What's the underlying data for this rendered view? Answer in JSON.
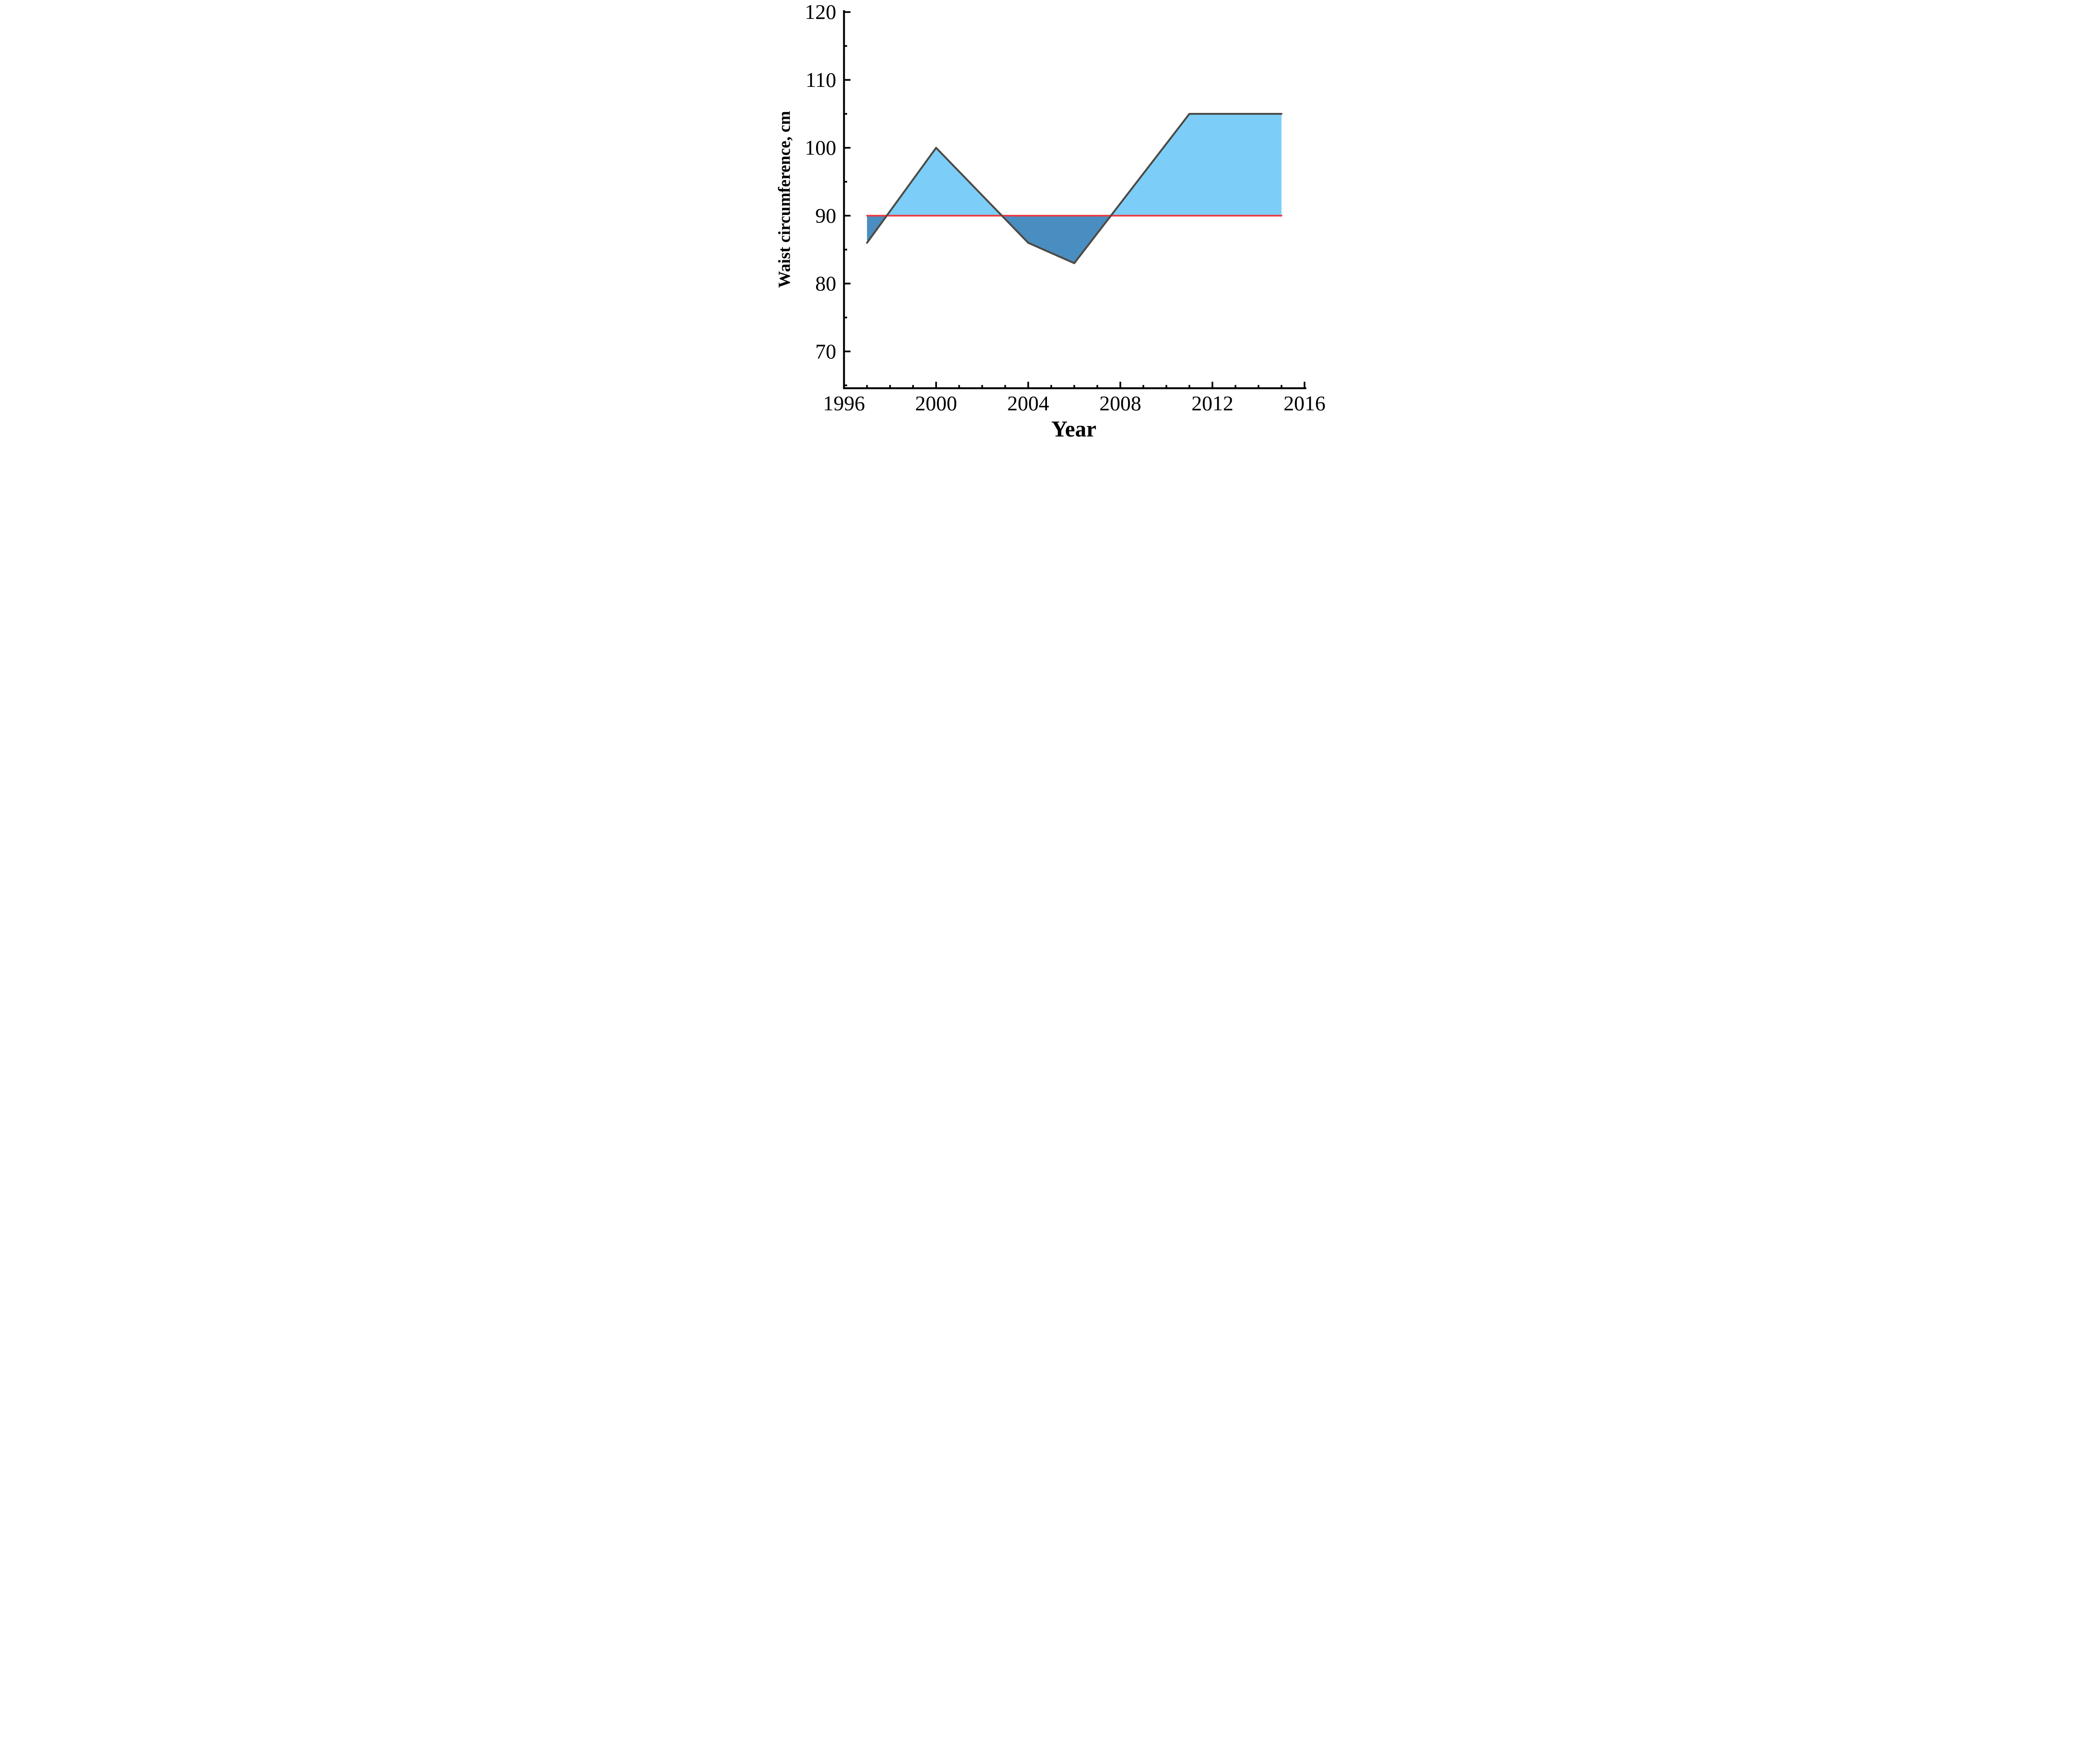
{
  "chart_data": {
    "type": "area",
    "title": "",
    "xlabel": "Year",
    "ylabel": "Waist circumference, cm",
    "xlim": [
      1996,
      2016
    ],
    "ylim": [
      64.6,
      120
    ],
    "x_ticks_major": [
      1996,
      2000,
      2004,
      2008,
      2012,
      2016
    ],
    "x_tick_minor_step": 1,
    "y_ticks_major": [
      70,
      80,
      90,
      100,
      110,
      120
    ],
    "y_tick_minor_step": 5,
    "grid": false,
    "legend": null,
    "series": [
      {
        "name": "waist-circumference",
        "x": [
          1997,
          2000,
          2004,
          2006,
          2011,
          2015
        ],
        "y": [
          86,
          100,
          86,
          83,
          105,
          105
        ],
        "line_color": "#4d4a45",
        "fill_above_reference": "#7ccef8",
        "fill_below_reference": "#4a8dc0"
      }
    ],
    "reference_line": {
      "y": 90,
      "color": "#ee3a43"
    },
    "axis_color": "#000000",
    "text_color": "#000000",
    "background": "#ffffff"
  }
}
